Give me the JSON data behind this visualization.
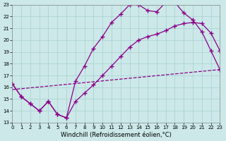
{
  "xlabel": "Windchill (Refroidissement éolien,°C)",
  "xlim": [
    0,
    23
  ],
  "ylim": [
    13,
    23
  ],
  "xticks": [
    0,
    1,
    2,
    3,
    4,
    5,
    6,
    7,
    8,
    9,
    10,
    11,
    12,
    13,
    14,
    15,
    16,
    17,
    18,
    19,
    20,
    21,
    22,
    23
  ],
  "yticks": [
    13,
    14,
    15,
    16,
    17,
    18,
    19,
    20,
    21,
    22,
    23
  ],
  "background_color": "#cce8e8",
  "line_color": "#880088",
  "curve1_x": [
    0,
    1,
    2,
    3,
    4,
    5,
    6,
    7,
    8,
    9,
    10,
    11,
    12,
    13,
    14,
    15,
    16,
    17,
    18,
    19,
    20,
    21,
    22,
    23
  ],
  "curve1_y": [
    16.3,
    15.2,
    14.6,
    14.0,
    14.8,
    13.7,
    13.4,
    16.5,
    17.8,
    19.3,
    20.3,
    21.5,
    22.2,
    23.0,
    23.0,
    22.5,
    22.4,
    23.2,
    23.2,
    22.3,
    21.7,
    20.7,
    19.1,
    17.5
  ],
  "curve2_x": [
    0,
    1,
    2,
    3,
    4,
    5,
    6,
    7,
    8,
    9,
    10,
    11,
    12,
    13,
    14,
    15,
    16,
    17,
    18,
    19,
    20,
    21,
    22,
    23
  ],
  "curve2_y": [
    16.3,
    15.2,
    14.6,
    14.0,
    14.8,
    13.7,
    13.4,
    14.8,
    15.5,
    16.2,
    17.0,
    17.8,
    18.6,
    19.4,
    20.0,
    20.3,
    20.5,
    20.8,
    21.2,
    21.4,
    21.5,
    21.4,
    20.6,
    19.1
  ],
  "curve3_x": [
    0,
    23
  ],
  "curve3_y": [
    15.8,
    17.5
  ],
  "markersize": 3,
  "linewidth": 0.9,
  "tick_fontsize": 5,
  "label_fontsize": 6,
  "grid_color": "#a8d0d0",
  "grid_linewidth": 0.5
}
